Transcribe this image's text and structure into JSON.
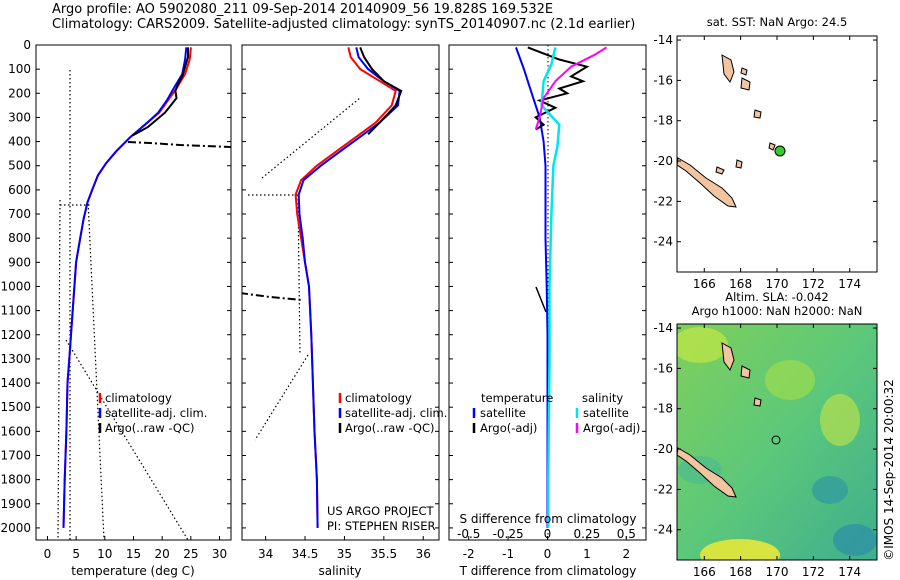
{
  "header": {
    "line1": "Argo profile: AO 5902080_211 09-Sep-2014 20140909_56 19.828S 169.532E",
    "line2": "Climatology: CARS2009. Satellite-adjusted climatology: synTS_20140907.nc (2.1d earlier)"
  },
  "colors": {
    "climatology": "#ff0000",
    "satellite": "#0000ff",
    "argo": "#000000",
    "salinity_satellite": "#00e5ee",
    "salinity_argo": "#ff00ff"
  },
  "depth_ticks": [
    0,
    100,
    200,
    300,
    400,
    500,
    600,
    700,
    800,
    900,
    1000,
    1100,
    1200,
    1300,
    1400,
    1500,
    1600,
    1700,
    1800,
    1900,
    2000
  ],
  "chart_data": [
    {
      "type": "line",
      "id": "temperature",
      "xlabel": "temperature (deg C)",
      "xlim": [
        -2,
        32
      ],
      "ylim": [
        2050,
        0
      ],
      "xticks": [
        "0",
        "5",
        "10",
        "15",
        "20",
        "25",
        "30"
      ],
      "legend": [
        "climatology",
        "satellite-adj. clim.",
        "Argo(..raw -QC)"
      ],
      "series": [
        {
          "name": "climatology",
          "x": [
            25.0,
            24.8,
            24.0,
            22.5,
            21.0,
            19.5,
            17.0,
            14.5,
            12.0,
            10.2,
            8.8,
            7.8,
            7.0,
            6.3,
            5.7,
            5.0,
            4.7,
            4.4,
            4.1,
            3.8,
            3.5,
            3.3,
            3.0,
            2.8
          ],
          "y": [
            10,
            60,
            120,
            180,
            230,
            280,
            330,
            380,
            440,
            490,
            540,
            600,
            650,
            720,
            800,
            900,
            1000,
            1100,
            1200,
            1300,
            1400,
            1600,
            1800,
            2000
          ]
        },
        {
          "name": "satellite-adj. clim.",
          "x": [
            24.2,
            24.0,
            23.5,
            22.0,
            20.8,
            19.3,
            17.0,
            14.5,
            12.0,
            10.2,
            8.8,
            7.8,
            7.0,
            6.3,
            5.7,
            5.0,
            4.7,
            4.4,
            4.1,
            3.8,
            3.5,
            3.3,
            3.0,
            2.8
          ],
          "y": [
            10,
            60,
            120,
            180,
            230,
            280,
            330,
            380,
            440,
            490,
            540,
            600,
            650,
            720,
            800,
            900,
            1000,
            1100,
            1200,
            1300,
            1400,
            1600,
            1800,
            2000
          ]
        },
        {
          "name": "Argo(..raw -QC)",
          "x": [
            24.5,
            24.5,
            24.0,
            23.5,
            22.8,
            22.3,
            22.5,
            21.5,
            20.5,
            19.0,
            17.5,
            16.0,
            14.8
          ],
          "y": [
            10,
            50,
            90,
            130,
            160,
            190,
            220,
            250,
            280,
            310,
            340,
            360,
            375
          ]
        }
      ]
    },
    {
      "type": "line",
      "id": "salinity",
      "xlabel": "salinity",
      "xlim": [
        33.7,
        36.2
      ],
      "ylim": [
        2050,
        0
      ],
      "xticks": [
        "34",
        "34.5",
        "35",
        "35.5",
        "36"
      ],
      "legend": [
        "climatology",
        "satellite-adj. clim.",
        "Argo(..raw -QC)"
      ],
      "annotation": [
        "US ARGO PROJECT",
        "PI: STEPHEN RISER"
      ],
      "series": [
        {
          "name": "climatology",
          "x": [
            35.05,
            35.08,
            35.2,
            35.45,
            35.65,
            35.6,
            35.4,
            35.15,
            34.9,
            34.65,
            34.45,
            34.38,
            34.4,
            34.45,
            34.5,
            34.55,
            34.58,
            34.6,
            34.62,
            34.65,
            34.66
          ],
          "y": [
            10,
            50,
            100,
            150,
            190,
            250,
            320,
            380,
            440,
            500,
            560,
            620,
            700,
            800,
            900,
            1000,
            1200,
            1400,
            1600,
            1800,
            2000
          ]
        },
        {
          "name": "satellite-adj. clim.",
          "x": [
            35.15,
            35.18,
            35.3,
            35.5,
            35.7,
            35.68,
            35.45,
            35.2,
            34.95,
            34.7,
            34.48,
            34.42,
            34.43,
            34.47,
            34.5,
            34.55,
            34.58,
            34.6,
            34.62,
            34.65,
            34.66
          ],
          "y": [
            10,
            50,
            100,
            150,
            190,
            250,
            320,
            380,
            440,
            500,
            560,
            620,
            700,
            800,
            900,
            1000,
            1200,
            1400,
            1600,
            1800,
            2000
          ]
        },
        {
          "name": "Argo(..raw -QC)",
          "x": [
            35.2,
            35.25,
            35.35,
            35.5,
            35.72,
            35.65,
            35.45,
            35.3
          ],
          "y": [
            10,
            50,
            100,
            150,
            190,
            250,
            320,
            370
          ]
        }
      ]
    },
    {
      "type": "line",
      "id": "difference",
      "xlabel": "T difference from climatology",
      "xlabel_top": "S difference from climatology",
      "xlim": [
        -2.5,
        2.5
      ],
      "ylim": [
        2050,
        0
      ],
      "xticks": [
        "-2",
        "-1",
        "0",
        "1",
        "2"
      ],
      "xticks_top": [
        "-0.5",
        "-0.25",
        "0",
        "0.25",
        "0.5"
      ],
      "legend_headers": [
        "temperature",
        "salinity"
      ],
      "legend": [
        "satellite",
        "Argo(-adj)",
        "satellite",
        "Argo(-adj)"
      ],
      "series": [
        {
          "name": "temperature satellite",
          "x": [
            -0.8,
            -0.6,
            -0.4,
            -0.2,
            -0.1,
            -0.05,
            -0.05,
            -0.05,
            -0.02,
            0,
            0,
            0,
            0
          ],
          "y": [
            10,
            100,
            200,
            300,
            400,
            500,
            600,
            800,
            1000,
            1200,
            1500,
            1800,
            2000
          ]
        },
        {
          "name": "temperature Argo(-adj)",
          "x": [
            -0.5,
            0.3,
            1.0,
            0.6,
            0.9,
            0.3,
            0.5,
            -0.2,
            0.2,
            -0.3,
            -0.1,
            -0.3
          ],
          "y": [
            10,
            60,
            90,
            130,
            150,
            180,
            200,
            230,
            260,
            300,
            330,
            350
          ]
        },
        {
          "name": "salinity satellite",
          "x": [
            0.2,
            0.1,
            -0.1,
            -0.15,
            0.3,
            0.25,
            0.15,
            0.1,
            0.05,
            0.05,
            0.03,
            0.02,
            0.02
          ],
          "y": [
            10,
            80,
            150,
            250,
            330,
            420,
            500,
            700,
            1000,
            1300,
            1600,
            1800,
            2000
          ]
        },
        {
          "name": "salinity Argo(-adj)",
          "x": [
            1.5,
            1.2,
            0.6,
            0.2,
            -0.1,
            -0.2,
            -0.3
          ],
          "y": [
            10,
            40,
            90,
            150,
            220,
            300,
            350
          ]
        }
      ]
    },
    {
      "type": "map",
      "id": "sst-map",
      "title": "sat. SST: NaN Argo: 24.5",
      "xticks": [
        "166",
        "168",
        "170",
        "172",
        "174"
      ],
      "yticks": [
        "-14",
        "-16",
        "-18",
        "-20",
        "-22",
        "-24"
      ],
      "xlim": [
        164.5,
        175.5
      ],
      "ylim": [
        -25.5,
        -13.8
      ],
      "marker": {
        "lon": 169.5,
        "lat": -19.8,
        "color": "#33cc33"
      }
    },
    {
      "type": "heatmap",
      "id": "sla-map",
      "title_line1": "Altim. SLA: -0.042",
      "title_line2": "Argo h1000: NaN h2000: NaN",
      "xticks": [
        "166",
        "168",
        "170",
        "172",
        "174"
      ],
      "yticks": [
        "-14",
        "-16",
        "-18",
        "-20",
        "-22",
        "-24"
      ],
      "xlim": [
        164.5,
        175.5
      ],
      "ylim": [
        -25.5,
        -13.8
      ]
    }
  ],
  "footer": {
    "stamp": "©IMOS 14-Sep-2014 20:00:32"
  }
}
